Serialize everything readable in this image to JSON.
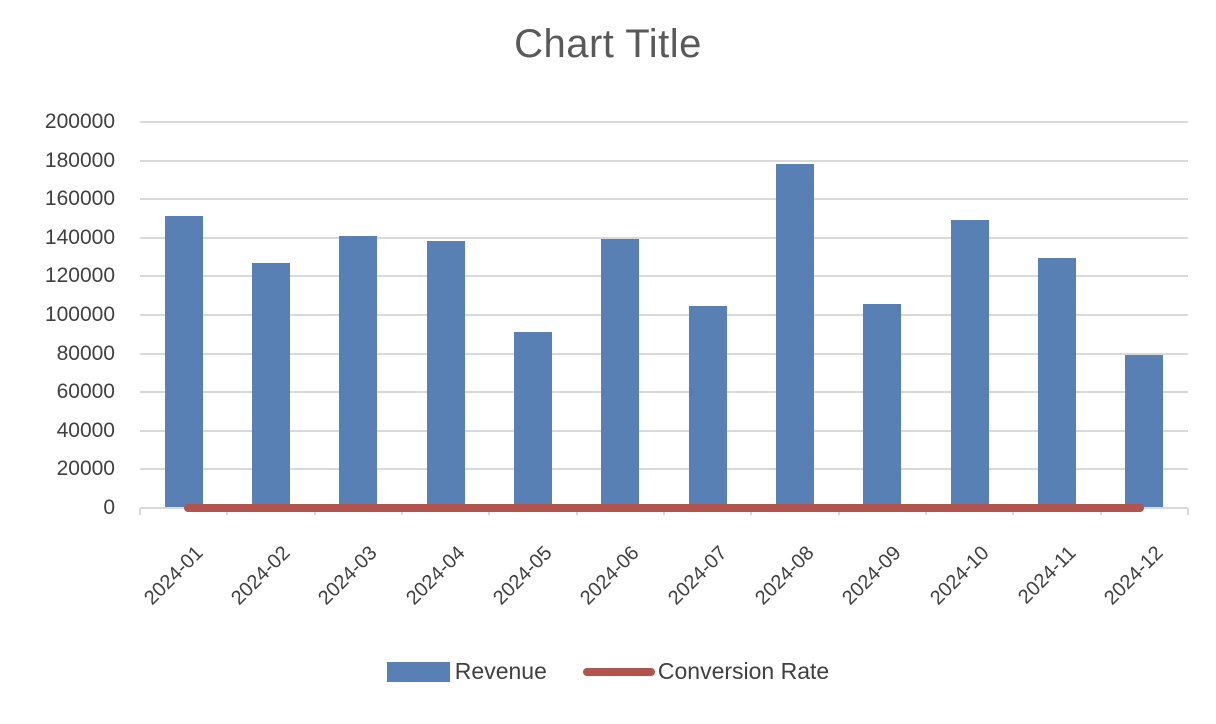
{
  "title": "Chart Title",
  "colors": {
    "background": "#FFFFFF",
    "bar_series": "#5880B4",
    "line_series": "#B0544D",
    "gridline": "#D9D9D9",
    "axis_line": "#D9D9D9",
    "title_text": "#595959",
    "axis_text": "#404040",
    "legend_text": "#404040"
  },
  "legend": {
    "position": "bottom",
    "items": [
      {
        "label": "Revenue",
        "swatch": "bar",
        "color": "#5880B4"
      },
      {
        "label": "Conversion Rate",
        "swatch": "line",
        "color": "#B0544D"
      }
    ]
  },
  "chart_data": {
    "type": "bar",
    "subtype": "combo-bar-line",
    "title": "Chart Title",
    "categories": [
      "2024-01",
      "2024-02",
      "2024-03",
      "2024-04",
      "2024-05",
      "2024-06",
      "2024-07",
      "2024-08",
      "2024-09",
      "2024-10",
      "2024-11",
      "2024-12"
    ],
    "series": [
      {
        "name": "Revenue",
        "type": "bar",
        "color": "#5880B4",
        "values": [
          151500,
          127000,
          141000,
          138500,
          91000,
          139500,
          104500,
          178500,
          105500,
          149000,
          129500,
          79500
        ]
      },
      {
        "name": "Conversion Rate",
        "type": "line",
        "color": "#B0544D",
        "values": [
          0,
          0,
          0,
          0,
          0,
          0,
          0,
          0,
          0,
          0,
          0,
          0
        ],
        "note": "line renders flat at ~0 because it shares the 0-200000 value axis"
      }
    ],
    "xlabel": "",
    "ylabel": "",
    "ylim": [
      0,
      200000
    ],
    "ytick_interval": 20000,
    "ytick_labels": [
      "0",
      "20000",
      "40000",
      "60000",
      "80000",
      "100000",
      "120000",
      "140000",
      "160000",
      "180000",
      "200000"
    ],
    "grid": true,
    "legend_position": "bottom",
    "x_tick_label_rotation": -45
  }
}
